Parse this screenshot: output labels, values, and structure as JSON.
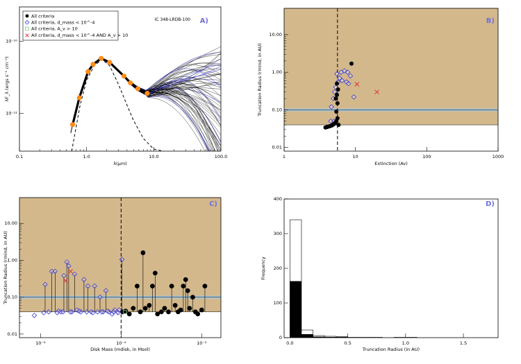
{
  "figure": {
    "object_name": "IC 348-LRDB-100"
  },
  "colors": {
    "shade": "#d3b88c",
    "blue": "#3a3ad0",
    "orange": "#ff8c1a",
    "red": "#e03030",
    "hline": "#a8c6d8",
    "label": "#6f6fe0"
  },
  "chart_data": [
    {
      "id": "A",
      "type": "line",
      "panel_label": "A)",
      "xlabel": "λ(μm)",
      "ylabel": "λF_λ (ergs s⁻¹ cm⁻²)",
      "xscale": "log",
      "yscale": "log",
      "xlim": [
        0.1,
        100
      ],
      "ylim": [
        3e-12,
        3e-10
      ],
      "x_ticks": [
        "0.1",
        "1.0",
        "10.0",
        "100.0"
      ],
      "y_ticks": [
        "10⁻¹¹",
        "10⁻¹⁰"
      ],
      "legend_position": "top-left",
      "legend": [
        {
          "symbol": "filled-circle",
          "label": "All criteria"
        },
        {
          "symbol": "open-diamond",
          "label": "All criteria, d_mass < 10^-4"
        },
        {
          "symbol": "open-square",
          "label": "All criteria, A_v > 10"
        },
        {
          "symbol": "x",
          "label": "All criteria, d_mass < 10^-4 AND A_v > 10"
        }
      ],
      "observed_sed": {
        "x": [
          0.62,
          0.78,
          1.05,
          1.25,
          1.65,
          2.2,
          3.6,
          4.5,
          5.8,
          8.0
        ],
        "y": [
          7e-12,
          1.65e-11,
          3.8e-11,
          4.8e-11,
          5.8e-11,
          5.1e-11,
          3.3e-11,
          2.65e-11,
          2.2e-11,
          1.9e-11
        ]
      },
      "photosphere": {
        "x": [
          0.6,
          0.8,
          1.0,
          1.3,
          1.7,
          2.2,
          3.0,
          4.0,
          5.0,
          7.0,
          10.0,
          14.0
        ],
        "y": [
          3e-12,
          1.3e-11,
          2.9e-11,
          4.6e-11,
          5.6e-11,
          4.6e-11,
          2.5e-11,
          1.3e-11,
          8e-12,
          4.5e-12,
          3.2e-12,
          3e-12
        ]
      }
    },
    {
      "id": "B",
      "type": "scatter",
      "panel_label": "B)",
      "xlabel": "Extinction (Av)",
      "ylabel": "Truncation Radius (rmind, in AU)",
      "xscale": "log",
      "yscale": "log",
      "xlim": [
        1,
        1000
      ],
      "ylim": [
        0.008,
        50
      ],
      "x_ticks": [
        "1",
        "10",
        "100",
        "1000"
      ],
      "y_ticks": [
        "0.01",
        "0.10",
        "1.00",
        "10.00"
      ],
      "vline": 5.6,
      "hline": 0.1,
      "shade_min": 0.04,
      "filled": {
        "x": [
          3.8,
          4.0,
          4.2,
          4.4,
          4.6,
          4.8,
          5.0,
          5.2,
          5.4,
          5.6,
          5.3,
          5.5,
          5.7,
          5.5,
          8.8,
          5.6,
          5.4,
          5.8
        ],
        "y": [
          0.034,
          0.035,
          0.036,
          0.037,
          0.038,
          0.04,
          0.042,
          0.045,
          0.05,
          0.06,
          0.2,
          0.25,
          0.35,
          0.5,
          1.7,
          0.15,
          0.09,
          0.04
        ]
      },
      "diamonds": {
        "x": [
          4.6,
          4.9,
          5.1,
          5.3,
          5.5,
          5.7,
          6.0,
          6.3,
          7.0,
          7.5,
          8.0,
          8.5,
          9.5,
          5.0,
          5.2,
          4.8,
          6.5,
          7.8,
          4.5
        ],
        "y": [
          0.12,
          0.2,
          0.3,
          0.4,
          0.9,
          0.55,
          0.7,
          1.0,
          1.1,
          0.55,
          0.5,
          0.8,
          0.22,
          0.05,
          0.045,
          0.04,
          0.6,
          1.0,
          0.05
        ]
      },
      "crosses": {
        "x": [
          10.5,
          20.0
        ],
        "y": [
          0.48,
          0.3
        ]
      }
    },
    {
      "id": "C",
      "type": "scatter",
      "panel_label": "C)",
      "xlabel": "Disk Mass (mdisk, in Msol)",
      "ylabel": "Truncation Radius (rmind, in AU)",
      "xscale": "log",
      "yscale": "log",
      "xlim": [
        3e-07,
        0.03
      ],
      "ylim": [
        0.008,
        50
      ],
      "x_ticks": [
        "10⁻⁶",
        "10⁻⁴",
        "10⁻²"
      ],
      "y_ticks": [
        "0.01",
        "0.10",
        "1.00",
        "10.00"
      ],
      "vline": 0.0001,
      "hline": 0.1,
      "shade_min": 0.04,
      "filled": {
        "x": [
          0.00011,
          0.00013,
          0.00016,
          0.0002,
          0.00025,
          0.0003,
          0.00035,
          0.0004,
          0.0005,
          0.0006,
          0.0007,
          0.0008,
          0.001,
          0.0012,
          0.0015,
          0.0018,
          0.0022,
          0.0026,
          0.003,
          0.0035,
          0.004,
          0.0045,
          0.005,
          0.006,
          0.007,
          0.008,
          0.01,
          0.012
        ],
        "y": [
          0.04,
          0.042,
          0.035,
          0.05,
          0.2,
          0.04,
          1.6,
          0.05,
          0.06,
          0.2,
          0.45,
          0.035,
          0.04,
          0.05,
          0.04,
          0.2,
          0.06,
          0.04,
          0.045,
          0.2,
          0.3,
          0.15,
          0.05,
          0.1,
          0.04,
          0.035,
          0.045,
          0.2
        ]
      },
      "diamonds": {
        "x": [
          7e-07,
          1.2e-06,
          1.6e-06,
          1.9e-06,
          2.3e-06,
          2.8e-06,
          3.2e-06,
          3.8e-06,
          4.5e-06,
          5e-06,
          6e-06,
          7e-06,
          8e-06,
          1e-05,
          1.2e-05,
          1.5e-05,
          1.8e-05,
          2.2e-05,
          2.6e-05,
          3e-05,
          3.6e-05,
          4.2e-05,
          5e-05,
          6e-05,
          7e-05,
          8e-05,
          9e-05,
          0.000105,
          1.3e-06,
          2.6e-06,
          3.6e-06,
          5.5e-06,
          9e-06,
          1.4e-05,
          2e-05,
          3.3e-05,
          4.6e-05,
          6.5e-05,
          8.5e-05
        ],
        "y": [
          0.032,
          0.038,
          0.04,
          0.5,
          0.5,
          0.042,
          0.04,
          0.38,
          0.9,
          0.7,
          0.04,
          0.42,
          0.045,
          0.04,
          0.3,
          0.2,
          0.04,
          0.2,
          0.04,
          0.1,
          0.04,
          0.15,
          0.04,
          0.035,
          0.045,
          0.04,
          0.045,
          1.05,
          0.22,
          0.038,
          0.04,
          0.04,
          0.042,
          0.04,
          0.038,
          0.04,
          0.042,
          0.04,
          0.038
        ]
      },
      "crosses": {
        "x": [
          4.2e-06,
          5.6e-06
        ],
        "y": [
          0.28,
          0.5
        ]
      },
      "squares": {
        "x": [
          0.000125
        ],
        "y": [
          0.04
        ]
      }
    },
    {
      "id": "D",
      "type": "bar",
      "panel_label": "D)",
      "xlabel": "Truncation Radius (in AU)",
      "ylabel": "Frequency",
      "xlim": [
        -0.05,
        1.8
      ],
      "ylim": [
        0,
        400
      ],
      "x_ticks": [
        "0.0",
        "0.5",
        "1.0",
        "1.5"
      ],
      "y_ticks": [
        "0",
        "100",
        "200",
        "300",
        "400"
      ],
      "bin_width": 0.1,
      "bin_starts": [
        0.0,
        0.1,
        0.2,
        0.3,
        0.4,
        0.5,
        0.6,
        0.7,
        0.8,
        0.9,
        1.0,
        1.1,
        1.2
      ],
      "open_counts": [
        340,
        22,
        6,
        4,
        3,
        1,
        1,
        1,
        0,
        1,
        1,
        0,
        0
      ],
      "filled_counts": [
        163,
        10,
        3,
        2,
        2,
        1,
        0,
        0,
        0,
        0,
        0,
        0,
        0
      ]
    }
  ]
}
